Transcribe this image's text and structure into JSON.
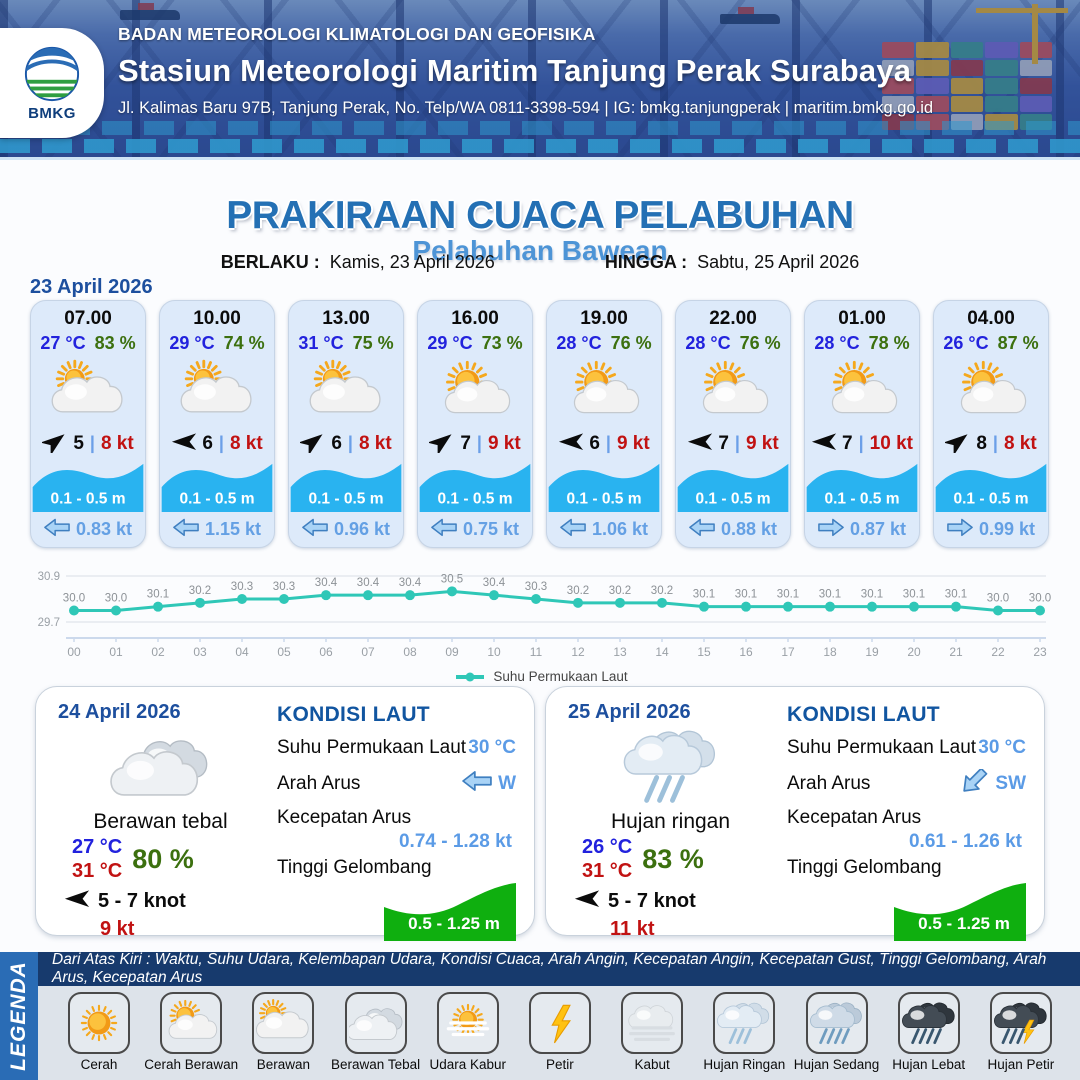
{
  "header": {
    "logo_text": "BMKG",
    "agency": "BADAN METEOROLOGI KLIMATOLOGI DAN GEOFISIKA",
    "station": "Stasiun Meteorologi Maritim Tanjung Perak Surabaya",
    "address": "Jl. Kalimas Baru 97B, Tanjung Perak, No. Telp/WA 0811-3398-594 | IG: bmkg.tanjungperak | maritim.bmkg.go.id"
  },
  "title": {
    "main": "PRAKIRAAN CUACA PELABUHAN",
    "port": "Pelabuhan Bawean",
    "berlaku_label": "BERLAKU :",
    "berlaku_value": "Kamis, 23 April 2026",
    "hingga_label": "HINGGA :",
    "hingga_value": "Sabtu, 25 April 2026"
  },
  "day1": {
    "date": "23 April 2026",
    "cards": [
      {
        "time": "07.00",
        "temp": "27 °C",
        "humidity": "83 %",
        "icon": "berawan",
        "wind_dir": "NE",
        "wind_speed": "5",
        "gust": "8 kt",
        "wave": "0.1 - 0.5 m",
        "current_dir": "W",
        "current_speed": "0.83 kt"
      },
      {
        "time": "10.00",
        "temp": "29 °C",
        "humidity": "74 %",
        "icon": "berawan",
        "wind_dir": "W",
        "wind_speed": "6",
        "gust": "8 kt",
        "wave": "0.1 - 0.5 m",
        "current_dir": "W",
        "current_speed": "1.15 kt"
      },
      {
        "time": "13.00",
        "temp": "31 °C",
        "humidity": "75 %",
        "icon": "berawan",
        "wind_dir": "NE",
        "wind_speed": "6",
        "gust": "8 kt",
        "wave": "0.1 - 0.5 m",
        "current_dir": "W",
        "current_speed": "0.96 kt"
      },
      {
        "time": "16.00",
        "temp": "29 °C",
        "humidity": "73 %",
        "icon": "cerah-berawan",
        "wind_dir": "NE",
        "wind_speed": "7",
        "gust": "9 kt",
        "wave": "0.1 - 0.5 m",
        "current_dir": "W",
        "current_speed": "0.75 kt"
      },
      {
        "time": "19.00",
        "temp": "28 °C",
        "humidity": "76 %",
        "icon": "cerah-berawan",
        "wind_dir": "W",
        "wind_speed": "6",
        "gust": "9 kt",
        "wave": "0.1 - 0.5 m",
        "current_dir": "W",
        "current_speed": "1.06 kt"
      },
      {
        "time": "22.00",
        "temp": "28 °C",
        "humidity": "76 %",
        "icon": "cerah-berawan",
        "wind_dir": "W",
        "wind_speed": "7",
        "gust": "9 kt",
        "wave": "0.1 - 0.5 m",
        "current_dir": "W",
        "current_speed": "0.88 kt"
      },
      {
        "time": "01.00",
        "temp": "28 °C",
        "humidity": "78 %",
        "icon": "cerah-berawan",
        "wind_dir": "W",
        "wind_speed": "7",
        "gust": "10 kt",
        "wave": "0.1 - 0.5 m",
        "current_dir": "E",
        "current_speed": "0.87 kt"
      },
      {
        "time": "04.00",
        "temp": "26 °C",
        "humidity": "87 %",
        "icon": "cerah-berawan",
        "wind_dir": "NE",
        "wind_speed": "8",
        "gust": "8 kt",
        "wave": "0.1 - 0.5 m",
        "current_dir": "E",
        "current_speed": "0.99 kt"
      }
    ]
  },
  "chart_data": {
    "type": "line",
    "series_name": "Suhu Permukaan Laut",
    "x": [
      "00",
      "01",
      "02",
      "03",
      "04",
      "05",
      "06",
      "07",
      "08",
      "09",
      "10",
      "11",
      "12",
      "13",
      "14",
      "15",
      "16",
      "17",
      "18",
      "19",
      "20",
      "21",
      "22",
      "23"
    ],
    "values": [
      30.0,
      30.0,
      30.1,
      30.2,
      30.3,
      30.3,
      30.4,
      30.4,
      30.4,
      30.5,
      30.4,
      30.3,
      30.2,
      30.2,
      30.2,
      30.1,
      30.1,
      30.1,
      30.1,
      30.1,
      30.1,
      30.1,
      30.0,
      30.0
    ],
    "ylim": [
      29.7,
      30.9
    ],
    "yticks": [
      "30.9",
      "29.7"
    ],
    "grid": true,
    "legend_position": "bottom",
    "line_color": "#2fc7b7"
  },
  "summaries": [
    {
      "date": "24 April 2026",
      "icon": "berawan-tebal",
      "condition": "Berawan tebal",
      "temp_min": "27 °C",
      "temp_max": "31 °C",
      "humidity": "80 %",
      "wind_range": "5  - 7 knot",
      "gust": "9 kt",
      "sea": {
        "heading": "KONDISI LAUT",
        "sst_label": "Suhu Permukaan Laut",
        "sst": "30 °C",
        "arah_label": "Arah Arus",
        "arah": "W",
        "kecepatan_label": "Kecepatan Arus",
        "kecepatan": "0.74  - 1.28 kt",
        "tinggi_label": "Tinggi Gelombang",
        "tinggi": "0.5 - 1.25 m"
      }
    },
    {
      "date": "25 April 2026",
      "icon": "hujan-ringan",
      "condition": "Hujan ringan",
      "temp_min": "26 °C",
      "temp_max": "31 °C",
      "humidity": "83 %",
      "wind_range": "5  - 7 knot",
      "gust": "11 kt",
      "sea": {
        "heading": "KONDISI LAUT",
        "sst_label": "Suhu Permukaan Laut",
        "sst": "30 °C",
        "arah_label": "Arah Arus",
        "arah": "SW",
        "kecepatan_label": "Kecepatan Arus",
        "kecepatan": "0.61 - 1.26 kt",
        "tinggi_label": "Tinggi Gelombang",
        "tinggi": "0.5 - 1.25 m"
      }
    }
  ],
  "legend": {
    "vertical_label": "LEGENDA",
    "note": "Dari Atas Kiri : Waktu, Suhu Udara, Kelembapan Udara, Kondisi Cuaca, Arah Angin, Kecepatan Angin, Kecepatan Gust, Tinggi Gelombang, Arah Arus, Kecepatan Arus",
    "items": [
      {
        "label": "Cerah",
        "icon": "cerah"
      },
      {
        "label": "Cerah Berawan",
        "icon": "cerah-berawan"
      },
      {
        "label": "Berawan",
        "icon": "berawan"
      },
      {
        "label": "Berawan Tebal",
        "icon": "berawan-tebal"
      },
      {
        "label": "Udara Kabur",
        "icon": "udara-kabur"
      },
      {
        "label": "Petir",
        "icon": "petir"
      },
      {
        "label": "Kabut",
        "icon": "kabut"
      },
      {
        "label": "Hujan Ringan",
        "icon": "hujan-ringan"
      },
      {
        "label": "Hujan Sedang",
        "icon": "hujan-sedang"
      },
      {
        "label": "Hujan Lebat",
        "icon": "hujan-lebat"
      },
      {
        "label": "Hujan Petir",
        "icon": "hujan-petir"
      }
    ]
  },
  "colors": {
    "title_blue": "#2470b4",
    "port_blue": "#4d94d6",
    "date_blue": "#1d4f9e",
    "temp_blue": "#2222dd",
    "humidity_green": "#3c700f",
    "gust_red": "#c11212",
    "wave_band_blue": "#29b3f0",
    "current_blue": "#64a0e4",
    "chart_teal": "#2fc7b7",
    "wave_box_green": "#0faf0f",
    "legend_band_blue": "#2a6cb5",
    "legend_bar_navy": "#173a6d"
  }
}
